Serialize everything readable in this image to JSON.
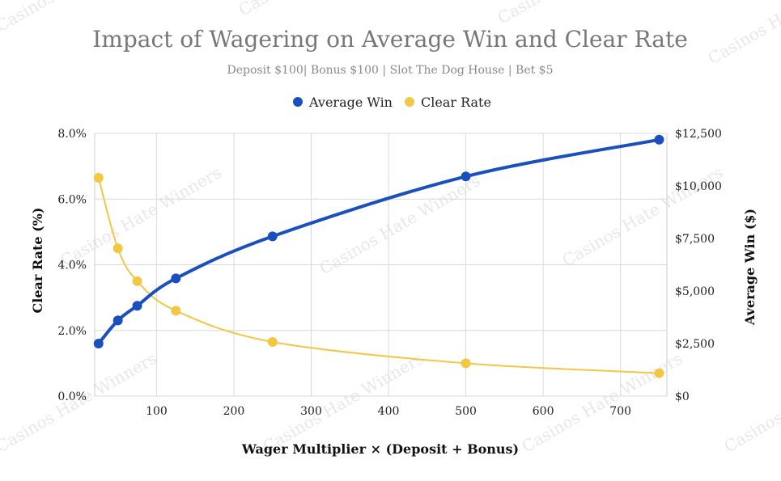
{
  "chart_data": {
    "type": "line",
    "title": "Impact of Wagering on Average Win and Clear Rate",
    "subtitle": "Deposit $100| Bonus  $100 | Slot The Dog House | Bet $5",
    "watermark": "Casinos Hate Winners",
    "xlabel": "Wager Multiplier × (Deposit + Bonus)",
    "ylabel_left": "Clear Rate (%)",
    "ylabel_right": "Average Win ($)",
    "x": [
      25,
      50,
      75,
      125,
      250,
      500,
      750
    ],
    "xlim": [
      20,
      760
    ],
    "x_ticks": [
      100,
      200,
      300,
      400,
      500,
      600,
      700
    ],
    "ylim_left": [
      0,
      8
    ],
    "y_ticks_left": [
      "0.0%",
      "2.0%",
      "4.0%",
      "6.0%",
      "8.0%"
    ],
    "y_ticks_left_values": [
      0,
      2,
      4,
      6,
      8
    ],
    "ylim_right": [
      0,
      12500
    ],
    "y_ticks_right": [
      "$0",
      "$2,500",
      "$5,000",
      "$7,500",
      "$10,000",
      "$12,500"
    ],
    "y_ticks_right_values": [
      0,
      2500,
      5000,
      7500,
      10000,
      12500
    ],
    "legend_position": "top-center",
    "grid": true,
    "series": [
      {
        "name": "Average Win",
        "axis": "right",
        "color": "#1a4fbf",
        "values": [
          2500,
          3600,
          4300,
          5600,
          7600,
          10450,
          12200
        ]
      },
      {
        "name": "Clear Rate",
        "axis": "left",
        "color": "#f2c744",
        "values": [
          6.65,
          4.5,
          3.5,
          2.6,
          1.65,
          1.0,
          0.7
        ]
      }
    ]
  }
}
